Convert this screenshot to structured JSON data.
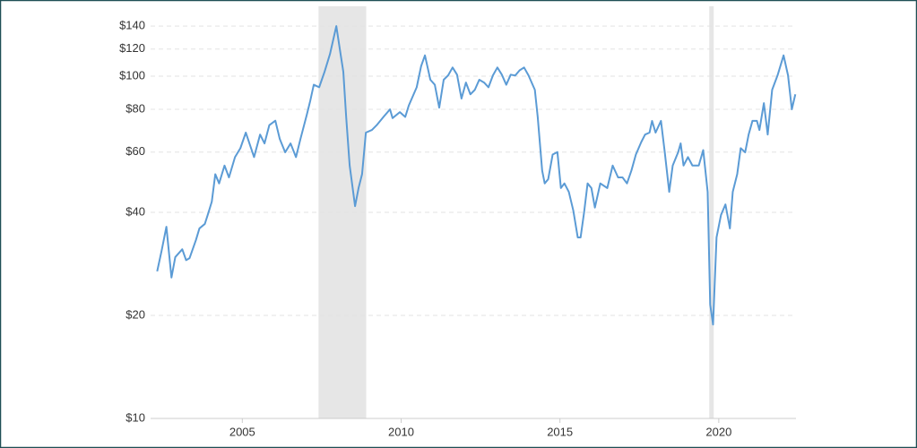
{
  "chart_data": {
    "type": "line",
    "log_scale": true,
    "grid": true,
    "color": "#5b9bd5",
    "recession_color": "#e6e6e6",
    "xlim": [
      2002,
      2022.6
    ],
    "xticks": [
      2005,
      2010,
      2015,
      2020
    ],
    "ylim": [
      10,
      160
    ],
    "yticks": [
      {
        "value": 10,
        "label": "$10"
      },
      {
        "value": 20,
        "label": "$20"
      },
      {
        "value": 40,
        "label": "$40"
      },
      {
        "value": 60,
        "label": "$60"
      },
      {
        "value": 80,
        "label": "$80"
      },
      {
        "value": 100,
        "label": "$100"
      },
      {
        "value": 120,
        "label": "$120"
      },
      {
        "value": 140,
        "label": "$140"
      }
    ],
    "recessions": [
      [
        2007.4,
        2008.9
      ],
      [
        2019.7,
        2019.84
      ]
    ],
    "x": [
      2002.32,
      2002.46,
      2002.61,
      2002.77,
      2002.89,
      2003.11,
      2003.23,
      2003.34,
      2003.54,
      2003.65,
      2003.82,
      2003.93,
      2004.04,
      2004.15,
      2004.27,
      2004.44,
      2004.58,
      2004.77,
      2004.94,
      2005.11,
      2005.37,
      2005.56,
      2005.7,
      2005.85,
      2006.04,
      2006.18,
      2006.35,
      2006.52,
      2006.69,
      2006.83,
      2007.03,
      2007.14,
      2007.25,
      2007.42,
      2007.59,
      2007.76,
      2007.96,
      2008.1,
      2008.18,
      2008.27,
      2008.38,
      2008.49,
      2008.55,
      2008.66,
      2008.77,
      2008.89,
      2009.08,
      2009.23,
      2009.45,
      2009.65,
      2009.73,
      2009.96,
      2010.13,
      2010.24,
      2010.49,
      2010.63,
      2010.75,
      2010.92,
      2011.06,
      2011.2,
      2011.34,
      2011.48,
      2011.62,
      2011.76,
      2011.9,
      2012.04,
      2012.18,
      2012.32,
      2012.46,
      2012.61,
      2012.75,
      2012.89,
      2013.03,
      2013.17,
      2013.31,
      2013.45,
      2013.59,
      2013.73,
      2013.87,
      2014.01,
      2014.21,
      2014.3,
      2014.44,
      2014.52,
      2014.63,
      2014.77,
      2014.92,
      2015.03,
      2015.14,
      2015.28,
      2015.42,
      2015.56,
      2015.65,
      2015.76,
      2015.87,
      2015.99,
      2016.1,
      2016.27,
      2016.49,
      2016.66,
      2016.83,
      2016.97,
      2017.11,
      2017.25,
      2017.39,
      2017.56,
      2017.68,
      2017.82,
      2017.9,
      2018.01,
      2018.18,
      2018.3,
      2018.44,
      2018.55,
      2018.72,
      2018.8,
      2018.89,
      2019.03,
      2019.17,
      2019.37,
      2019.51,
      2019.65,
      2019.73,
      2019.82,
      2019.93,
      2020.07,
      2020.21,
      2020.35,
      2020.44,
      2020.58,
      2020.69,
      2020.83,
      2020.94,
      2021.06,
      2021.2,
      2021.28,
      2021.42,
      2021.54,
      2021.68,
      2021.85,
      2022.04,
      2022.18,
      2022.3,
      2022.41
    ],
    "values": [
      26.9,
      30.9,
      36.3,
      25.8,
      29.6,
      31.2,
      29,
      29.4,
      33.2,
      35.9,
      37,
      39.8,
      43,
      51.7,
      48.6,
      54.8,
      50.6,
      58,
      61.6,
      68.4,
      58,
      67.5,
      63.6,
      71.9,
      74.1,
      65.5,
      59.9,
      63.6,
      58,
      65.5,
      77.1,
      84.8,
      94.4,
      92.8,
      103,
      116,
      140,
      115,
      103,
      76,
      54.8,
      45.9,
      41.7,
      47.1,
      51.7,
      68.4,
      69.6,
      71.9,
      76.1,
      80,
      75.4,
      78.5,
      76,
      82,
      92.8,
      107,
      115,
      97.6,
      94.4,
      80.9,
      97.6,
      100.5,
      106,
      101,
      86,
      95.8,
      88.5,
      91.2,
      97.6,
      95.8,
      92.8,
      100.5,
      106,
      101,
      94.4,
      101,
      100.4,
      104,
      106,
      100.5,
      91.2,
      76,
      53,
      48.6,
      50,
      59,
      60,
      47.1,
      48.6,
      45.9,
      40.5,
      33.8,
      33.8,
      40,
      48.6,
      47.1,
      41.3,
      48.6,
      47.1,
      54.8,
      50.6,
      50.6,
      48.6,
      53,
      59,
      64.2,
      67.5,
      68.4,
      74,
      68.4,
      74,
      59.9,
      45.9,
      54.8,
      59.9,
      63.6,
      54.8,
      58,
      54.8,
      54.8,
      60.8,
      45.9,
      21.5,
      18.8,
      33.8,
      39.3,
      42.2,
      35.9,
      45.9,
      51.7,
      61.6,
      59.9,
      67.5,
      74,
      74,
      69.6,
      83.4,
      67.5,
      91.2,
      100.5,
      115,
      100.5,
      80,
      88.5
    ]
  }
}
